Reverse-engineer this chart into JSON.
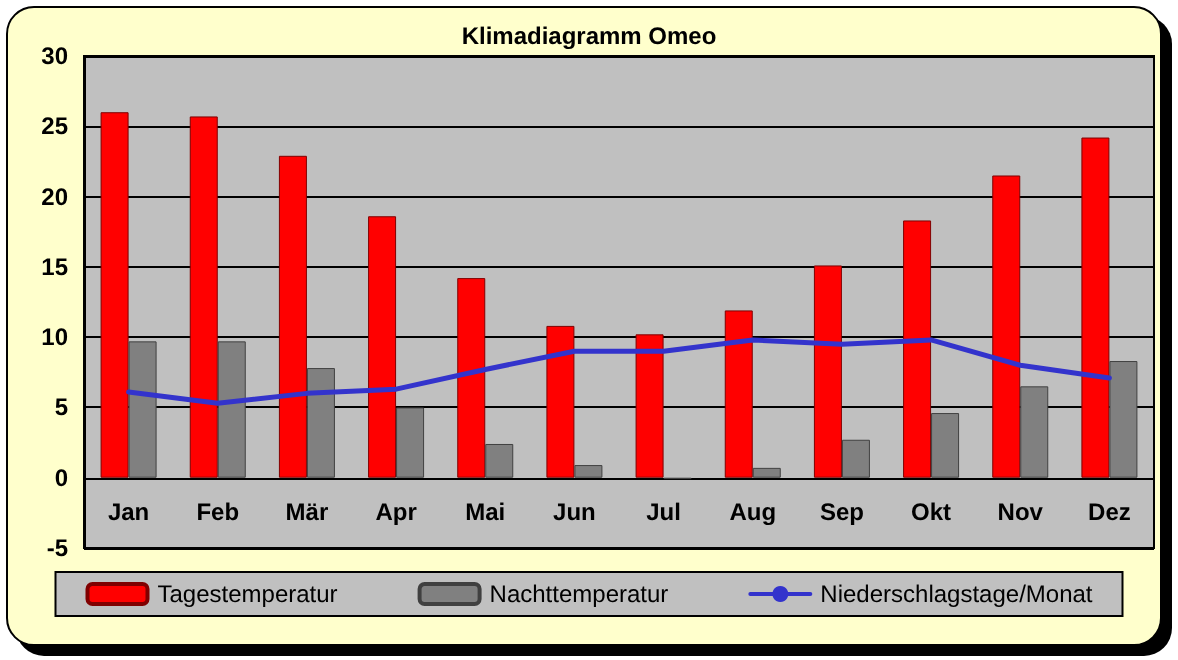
{
  "chart_data": {
    "type": "bar",
    "title": "Klimadiagramm Omeo",
    "categories": [
      "Jan",
      "Feb",
      "Mär",
      "Apr",
      "Mai",
      "Jun",
      "Jul",
      "Aug",
      "Sep",
      "Okt",
      "Nov",
      "Dez"
    ],
    "series": [
      {
        "name": "Tagestemperatur",
        "color": "#ff0000",
        "values": [
          26.0,
          25.7,
          22.9,
          18.6,
          14.2,
          10.8,
          10.2,
          11.9,
          15.1,
          18.3,
          21.5,
          24.2
        ]
      },
      {
        "name": "Nachttemperatur",
        "color": "#808080",
        "values": [
          9.7,
          9.7,
          7.8,
          5.0,
          2.4,
          0.9,
          -0.1,
          0.7,
          2.7,
          4.6,
          6.5,
          8.3
        ]
      },
      {
        "name": "Niederschlagstage/Monat",
        "type": "line",
        "color": "#3333cc",
        "values": [
          6.1,
          5.3,
          6.0,
          6.3,
          7.7,
          9.0,
          9.0,
          9.8,
          9.5,
          9.8,
          8.0,
          7.1
        ]
      }
    ],
    "ylim": [
      -5,
      30
    ],
    "yticks": [
      -5,
      0,
      5,
      10,
      15,
      20,
      25,
      30
    ],
    "grid": "y",
    "legend": "bottom",
    "marker": "none",
    "line_style": "solid"
  }
}
